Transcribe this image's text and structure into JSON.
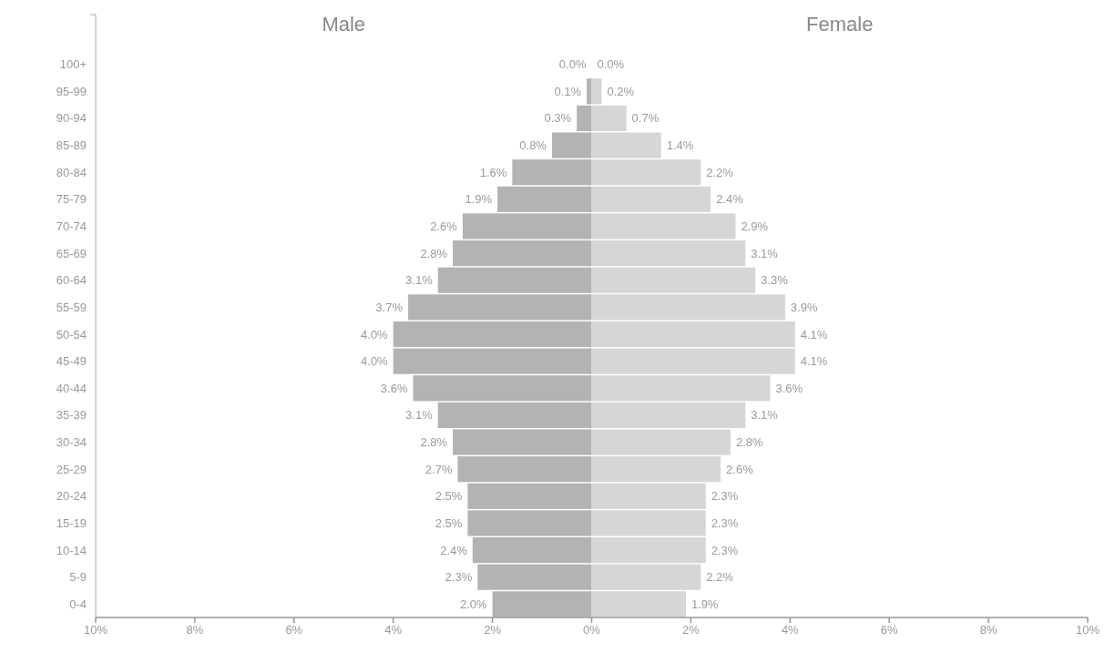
{
  "chart_data": [
    {
      "type": "bar",
      "orientation": "horizontal",
      "title": "Male",
      "categories": [
        "100+",
        "95-99",
        "90-94",
        "85-89",
        "80-84",
        "75-79",
        "70-74",
        "65-69",
        "60-64",
        "55-59",
        "50-54",
        "45-49",
        "40-44",
        "35-39",
        "30-34",
        "25-29",
        "20-24",
        "15-19",
        "10-14",
        "5-9",
        "0-4"
      ],
      "xlim": [
        10,
        0
      ],
      "xticks": [
        {
          "value": 10,
          "label": "10%"
        },
        {
          "value": 8,
          "label": "8%"
        },
        {
          "value": 6,
          "label": "6%"
        },
        {
          "value": 4,
          "label": "4%"
        },
        {
          "value": 2,
          "label": "2%"
        },
        {
          "value": 0,
          "label": "0%"
        }
      ],
      "series": [
        {
          "color": "#b3b3b3",
          "values": [
            0,
            0.1,
            0.3,
            0.8,
            1.6,
            1.9,
            2.6,
            2.8,
            3.1,
            3.7,
            4.0,
            4.0,
            3.6,
            3.1,
            2.8,
            2.7,
            2.5,
            2.5,
            2.4,
            2.3,
            2.0
          ],
          "value_labels": [
            "0.0%",
            "0.1%",
            "0.3%",
            "0.8%",
            "1.6%",
            "1.9%",
            "2.6%",
            "2.8%",
            "3.1%",
            "3.7%",
            "4.0%",
            "4.0%",
            "3.6%",
            "3.1%",
            "2.8%",
            "2.7%",
            "2.5%",
            "2.5%",
            "2.4%",
            "2.3%",
            "2.0%"
          ]
        }
      ]
    },
    {
      "type": "bar",
      "orientation": "horizontal",
      "title": "Female",
      "tick_labels": "x",
      "categories": [
        null,
        null,
        null,
        null,
        null,
        null,
        null,
        null,
        null,
        null,
        null,
        null,
        null,
        null,
        null,
        null,
        null,
        null,
        null,
        null,
        null
      ],
      "xlim": [
        0,
        10
      ],
      "xticks": [
        {
          "value": 2,
          "label": "2%"
        },
        {
          "value": 4,
          "label": "4%"
        },
        {
          "value": 6,
          "label": "6%"
        },
        {
          "value": 8,
          "label": "8%"
        },
        {
          "value": 10,
          "label": "10%"
        }
      ],
      "series": [
        {
          "color": "#d6d6d6",
          "values": [
            0,
            0.2,
            0.7,
            1.4,
            2.2,
            2.4,
            2.9,
            3.1,
            3.3,
            3.9,
            4.1,
            4.1,
            3.6,
            3.1,
            2.8,
            2.6,
            2.3,
            2.3,
            2.3,
            2.2,
            1.9
          ],
          "value_labels": [
            "0.0%",
            "0.2%",
            "0.7%",
            "1.4%",
            "2.2%",
            "2.4%",
            "2.9%",
            "3.1%",
            "3.3%",
            "3.9%",
            "4.1%",
            "4.1%",
            "3.6%",
            "3.1%",
            "2.8%",
            "2.6%",
            "2.3%",
            "2.3%",
            "2.3%",
            "2.2%",
            "1.9%"
          ]
        }
      ]
    }
  ]
}
